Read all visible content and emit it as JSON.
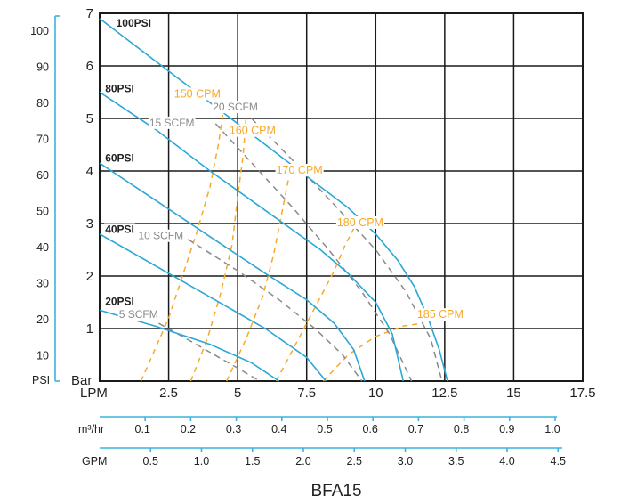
{
  "chart_data": {
    "type": "line",
    "title": "BFA15",
    "x_axis": {
      "label": "LPM",
      "range": [
        0,
        17.5
      ],
      "ticks": [
        "2.5",
        "5",
        "7.5",
        "10",
        "12.5",
        "15",
        "17.5"
      ],
      "tick_values": [
        2.5,
        5,
        7.5,
        10,
        12.5,
        15,
        17.5
      ]
    },
    "y_axis": {
      "label": "Bar",
      "range": [
        0,
        7
      ],
      "ticks": [
        "1",
        "2",
        "3",
        "4",
        "5",
        "6",
        "7"
      ],
      "tick_values": [
        1,
        2,
        3,
        4,
        5,
        6,
        7
      ]
    },
    "psi_axis": {
      "label": "PSI",
      "ticks": [
        "10",
        "20",
        "30",
        "40",
        "50",
        "60",
        "70",
        "80",
        "90",
        "100"
      ],
      "tick_values": [
        10,
        20,
        30,
        40,
        50,
        60,
        70,
        80,
        90,
        100
      ]
    },
    "m3hr_axis": {
      "label": "m³/hr",
      "ticks": [
        "0.1",
        "0.2",
        "0.3",
        "0.4",
        "0.5",
        "0.6",
        "0.7",
        "0.8",
        "0.9",
        "1.0"
      ],
      "tick_values": [
        0.1,
        0.2,
        0.3,
        0.4,
        0.5,
        0.6,
        0.7,
        0.8,
        0.9,
        1.0
      ]
    },
    "gpm_axis": {
      "label": "GPM",
      "ticks": [
        "0.5",
        "1.0",
        "1.5",
        "2.0",
        "2.5",
        "3.0",
        "3.5",
        "4.0",
        "4.5"
      ],
      "tick_values": [
        0.5,
        1.0,
        1.5,
        2.0,
        2.5,
        3.0,
        3.5,
        4.0,
        4.5
      ]
    },
    "grid": true,
    "series": [
      {
        "name": "100PSI",
        "group": "pressure",
        "color": "#2aa7d6",
        "points": [
          [
            0,
            6.9
          ],
          [
            2,
            6.1
          ],
          [
            4,
            5.3
          ],
          [
            6,
            4.5
          ],
          [
            8,
            3.7
          ],
          [
            9,
            3.3
          ],
          [
            10,
            2.8
          ],
          [
            10.8,
            2.3
          ],
          [
            11.4,
            1.8
          ],
          [
            11.9,
            1.2
          ],
          [
            12.3,
            0.6
          ],
          [
            12.6,
            0
          ]
        ]
      },
      {
        "name": "80PSI",
        "group": "pressure",
        "color": "#2aa7d6",
        "points": [
          [
            0,
            5.5
          ],
          [
            2,
            4.8
          ],
          [
            4,
            4.0
          ],
          [
            6,
            3.25
          ],
          [
            8,
            2.5
          ],
          [
            9,
            2.05
          ],
          [
            10,
            1.5
          ],
          [
            10.6,
            0.9
          ],
          [
            11,
            0
          ]
        ]
      },
      {
        "name": "60PSI",
        "group": "pressure",
        "color": "#2aa7d6",
        "points": [
          [
            0,
            4.15
          ],
          [
            2,
            3.45
          ],
          [
            4,
            2.75
          ],
          [
            6,
            2.05
          ],
          [
            7.5,
            1.55
          ],
          [
            8.5,
            1.1
          ],
          [
            9.2,
            0.6
          ],
          [
            9.6,
            0
          ]
        ]
      },
      {
        "name": "40PSI",
        "group": "pressure",
        "color": "#2aa7d6",
        "points": [
          [
            0,
            2.8
          ],
          [
            2,
            2.2
          ],
          [
            4,
            1.6
          ],
          [
            6,
            1.0
          ],
          [
            7.5,
            0.45
          ],
          [
            8.2,
            0
          ]
        ]
      },
      {
        "name": "20PSI",
        "group": "pressure",
        "color": "#2aa7d6",
        "points": [
          [
            0,
            1.35
          ],
          [
            2,
            1.05
          ],
          [
            4,
            0.7
          ],
          [
            5.5,
            0.35
          ],
          [
            6.5,
            0
          ]
        ]
      },
      {
        "name": "5 SCFM",
        "group": "air",
        "color": "#8a8a8a",
        "points": [
          [
            1.8,
            1.2
          ],
          [
            3,
            0.85
          ],
          [
            4,
            0.55
          ],
          [
            5,
            0.25
          ],
          [
            5.8,
            0
          ]
        ]
      },
      {
        "name": "10 SCFM",
        "group": "air",
        "color": "#8a8a8a",
        "points": [
          [
            3.2,
            2.7
          ],
          [
            5,
            2.1
          ],
          [
            6.5,
            1.55
          ],
          [
            7.8,
            1.0
          ],
          [
            8.8,
            0.5
          ],
          [
            9.5,
            0
          ]
        ]
      },
      {
        "name": "15 SCFM",
        "group": "air",
        "color": "#8a8a8a",
        "points": [
          [
            4.2,
            4.9
          ],
          [
            5.6,
            4.1
          ],
          [
            7,
            3.3
          ],
          [
            8.3,
            2.5
          ],
          [
            9.5,
            1.7
          ],
          [
            10.5,
            0.9
          ],
          [
            11.3,
            0
          ]
        ]
      },
      {
        "name": "20 SCFM",
        "group": "air",
        "color": "#8a8a8a",
        "points": [
          [
            5.5,
            5.0
          ],
          [
            7,
            4.2
          ],
          [
            8.6,
            3.3
          ],
          [
            10,
            2.5
          ],
          [
            11.1,
            1.7
          ],
          [
            12,
            0.8
          ],
          [
            12.4,
            0
          ]
        ]
      },
      {
        "name": "150 CPM",
        "group": "speed",
        "color": "#f7a928",
        "points": [
          [
            1.5,
            0
          ],
          [
            2.0,
            0.6
          ],
          [
            2.5,
            1.2
          ],
          [
            3.0,
            2.0
          ],
          [
            3.5,
            2.8
          ],
          [
            4.0,
            3.7
          ],
          [
            4.3,
            4.5
          ],
          [
            4.5,
            5.2
          ]
        ]
      },
      {
        "name": "160 CPM",
        "group": "speed",
        "color": "#f7a928",
        "points": [
          [
            3.3,
            0
          ],
          [
            3.9,
            0.8
          ],
          [
            4.4,
            1.7
          ],
          [
            4.8,
            2.6
          ],
          [
            5.0,
            3.5
          ],
          [
            5.2,
            4.3
          ],
          [
            5.3,
            5.0
          ]
        ]
      },
      {
        "name": "170 CPM",
        "group": "speed",
        "color": "#f7a928",
        "points": [
          [
            4.6,
            0
          ],
          [
            5.3,
            0.8
          ],
          [
            5.9,
            1.6
          ],
          [
            6.3,
            2.4
          ],
          [
            6.6,
            3.2
          ],
          [
            6.9,
            4.0
          ]
        ]
      },
      {
        "name": "180 CPM",
        "group": "speed",
        "color": "#f7a928",
        "points": [
          [
            6.4,
            0
          ],
          [
            7.2,
            0.8
          ],
          [
            7.9,
            1.5
          ],
          [
            8.5,
            2.1
          ],
          [
            8.9,
            2.6
          ],
          [
            9.3,
            3.0
          ]
        ]
      },
      {
        "name": "185 CPM",
        "group": "speed",
        "color": "#f7a928",
        "points": [
          [
            8.1,
            0
          ],
          [
            9,
            0.5
          ],
          [
            10,
            0.85
          ],
          [
            11,
            1.05
          ],
          [
            11.7,
            1.1
          ]
        ]
      }
    ],
    "curve_labels": [
      {
        "text": "100PSI",
        "x": 0.6,
        "y": 6.75,
        "color": "#222"
      },
      {
        "text": "80PSI",
        "x": 0.2,
        "y": 5.5,
        "color": "#222"
      },
      {
        "text": "60PSI",
        "x": 0.2,
        "y": 4.18,
        "color": "#222"
      },
      {
        "text": "40PSI",
        "x": 0.2,
        "y": 2.82,
        "color": "#222"
      },
      {
        "text": "20PSI",
        "x": 0.2,
        "y": 1.45,
        "color": "#222"
      },
      {
        "text": "5 SCFM",
        "x": 0.7,
        "y": 1.2,
        "color": "#8a8a8a"
      },
      {
        "text": "10 SCFM",
        "x": 1.4,
        "y": 2.7,
        "color": "#8a8a8a"
      },
      {
        "text": "15 SCFM",
        "x": 1.8,
        "y": 4.85,
        "color": "#8a8a8a"
      },
      {
        "text": "20 SCFM",
        "x": 4.1,
        "y": 5.15,
        "color": "#8a8a8a"
      },
      {
        "text": "150 CPM",
        "x": 2.7,
        "y": 5.4,
        "color": "#f7a928"
      },
      {
        "text": "160 CPM",
        "x": 4.7,
        "y": 4.7,
        "color": "#f7a928"
      },
      {
        "text": "170 CPM",
        "x": 6.4,
        "y": 3.95,
        "color": "#f7a928"
      },
      {
        "text": "180 CPM",
        "x": 8.6,
        "y": 2.95,
        "color": "#f7a928"
      },
      {
        "text": "185 CPM",
        "x": 11.5,
        "y": 1.2,
        "color": "#f7a928"
      }
    ]
  }
}
